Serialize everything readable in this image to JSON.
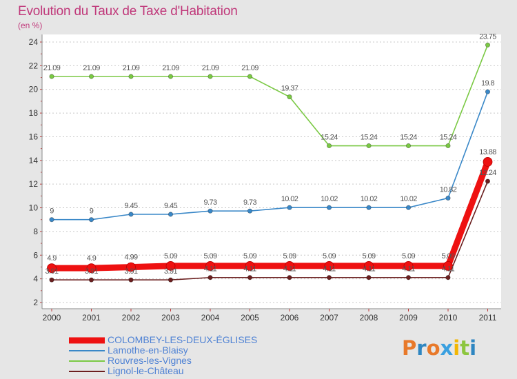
{
  "header": {
    "title": "Evolution du Taux de Taxe d'Habitation",
    "subtitle": "(en %)"
  },
  "logo": {
    "text": "Proxiti",
    "letters": [
      "P",
      "r",
      "o",
      "x",
      "i",
      "t",
      "i"
    ],
    "colors": [
      "#e8792a",
      "#2e86c1",
      "#e8792a",
      "#3aa0e0",
      "#f2b705",
      "#8dc63f",
      "#2e86c1"
    ]
  },
  "chart_data": {
    "type": "line",
    "title": "Evolution du Taux de Taxe d'Habitation",
    "subtitle": "(en %)",
    "xlabel": "",
    "ylabel": "",
    "x": [
      "2000",
      "2001",
      "2002",
      "2003",
      "2004",
      "2005",
      "2006",
      "2007",
      "2008",
      "2009",
      "2010",
      "2011"
    ],
    "ylim": [
      2,
      24
    ],
    "yticks": [
      "2",
      "4",
      "6",
      "8",
      "10",
      "12",
      "14",
      "16",
      "18",
      "20",
      "22",
      "24"
    ],
    "grid": "horizontal dashed",
    "legend_position": "bottom-left",
    "series": [
      {
        "name": "COLOMBEY-LES-DEUX-ÉGLISES",
        "color": "#ee1111",
        "emphasis": true,
        "values": [
          4.9,
          4.9,
          4.99,
          5.09,
          5.09,
          5.09,
          5.09,
          5.09,
          5.09,
          5.09,
          5.09,
          13.88
        ],
        "labels": [
          "4.9",
          "4.9",
          "4.99",
          "5.09",
          "5.09",
          "5.09",
          "5.09",
          "5.09",
          "5.09",
          "5.09",
          "5.09",
          "13.88"
        ]
      },
      {
        "name": "Lamothe-en-Blaisy",
        "color": "#3a88c8",
        "emphasis": false,
        "values": [
          9,
          9,
          9.45,
          9.45,
          9.73,
          9.73,
          10.02,
          10.02,
          10.02,
          10.02,
          10.82,
          19.8
        ],
        "labels": [
          "9",
          "9",
          "9.45",
          "9.45",
          "9.73",
          "9.73",
          "10.02",
          "10.02",
          "10.02",
          "10.02",
          "10.82",
          "19.8"
        ]
      },
      {
        "name": "Rouvres-les-Vignes",
        "color": "#7ac943",
        "emphasis": false,
        "values": [
          21.09,
          21.09,
          21.09,
          21.09,
          21.09,
          21.09,
          19.37,
          15.24,
          15.24,
          15.24,
          15.24,
          23.75
        ],
        "labels": [
          "21.09",
          "21.09",
          "21.09",
          "21.09",
          "21.09",
          "21.09",
          "19.37",
          "15.24",
          "15.24",
          "15.24",
          "15.24",
          "23.75"
        ]
      },
      {
        "name": "Lignol-le-Château",
        "color": "#6b1f1f",
        "emphasis": false,
        "values": [
          3.91,
          3.91,
          3.91,
          3.91,
          4.11,
          4.11,
          4.11,
          4.11,
          4.11,
          4.11,
          4.11,
          12.24
        ],
        "labels": [
          "3.91",
          "3.91",
          "3.91",
          "3.91",
          "4.11",
          "4.11",
          "4.11",
          "4.11",
          "4.11",
          "4.11",
          "4.11",
          "12.24"
        ]
      }
    ]
  }
}
